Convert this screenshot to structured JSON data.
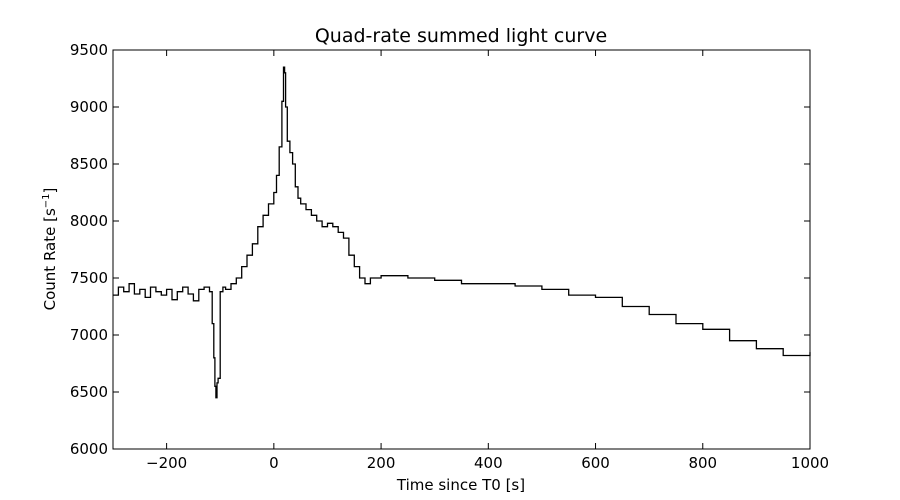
{
  "chart_data": {
    "type": "line",
    "title": "Quad-rate summed light curve",
    "xlabel": "Time since T0 [s]",
    "ylabel_main": "Count Rate [s",
    "ylabel_sup": "−1",
    "ylabel_end": "]",
    "xlim": [
      -300,
      1000
    ],
    "ylim": [
      6000,
      9500
    ],
    "x_ticks": [
      -200,
      0,
      200,
      400,
      600,
      800,
      1000
    ],
    "x_tick_labels": [
      "−200",
      "0",
      "200",
      "400",
      "600",
      "800",
      "1000"
    ],
    "y_ticks": [
      6000,
      6500,
      7000,
      7500,
      8000,
      8500,
      9000,
      9500
    ],
    "y_tick_labels": [
      "6000",
      "6500",
      "7000",
      "7500",
      "8000",
      "8500",
      "9000",
      "9500"
    ],
    "grid": false,
    "line_color": "#000000",
    "series": [
      {
        "style": "steps",
        "x": [
          -300,
          -290,
          -280,
          -270,
          -260,
          -250,
          -240,
          -230,
          -220,
          -210,
          -200,
          -190,
          -180,
          -170,
          -160,
          -150,
          -140,
          -130,
          -120,
          -115,
          -112,
          -110,
          -108,
          -106,
          -104,
          -100,
          -95,
          -90,
          -80,
          -70,
          -60,
          -50,
          -40,
          -30,
          -20,
          -10,
          0,
          5,
          10,
          15,
          18,
          20,
          22,
          25,
          30,
          35,
          40,
          45,
          50,
          60,
          70,
          80,
          90,
          100,
          110,
          120,
          130,
          140,
          150,
          160,
          170,
          180,
          200,
          250,
          300,
          350,
          400,
          450,
          500,
          550,
          600,
          650,
          700,
          750,
          800,
          850,
          900,
          950,
          1000
        ],
        "y": [
          7350,
          7420,
          7380,
          7450,
          7360,
          7400,
          7330,
          7420,
          7380,
          7350,
          7400,
          7310,
          7380,
          7420,
          7360,
          7300,
          7400,
          7420,
          7380,
          7100,
          6800,
          6550,
          6450,
          6580,
          6620,
          7380,
          7420,
          7400,
          7450,
          7500,
          7600,
          7700,
          7800,
          7950,
          8050,
          8150,
          8250,
          8400,
          8650,
          9050,
          9350,
          9300,
          9000,
          8700,
          8600,
          8500,
          8300,
          8200,
          8150,
          8100,
          8050,
          8000,
          7950,
          7980,
          7950,
          7900,
          7850,
          7700,
          7600,
          7500,
          7450,
          7500,
          7520,
          7500,
          7480,
          7450,
          7450,
          7430,
          7400,
          7350,
          7330,
          7250,
          7180,
          7100,
          7050,
          6950,
          6880,
          6820,
          6850
        ]
      }
    ]
  }
}
